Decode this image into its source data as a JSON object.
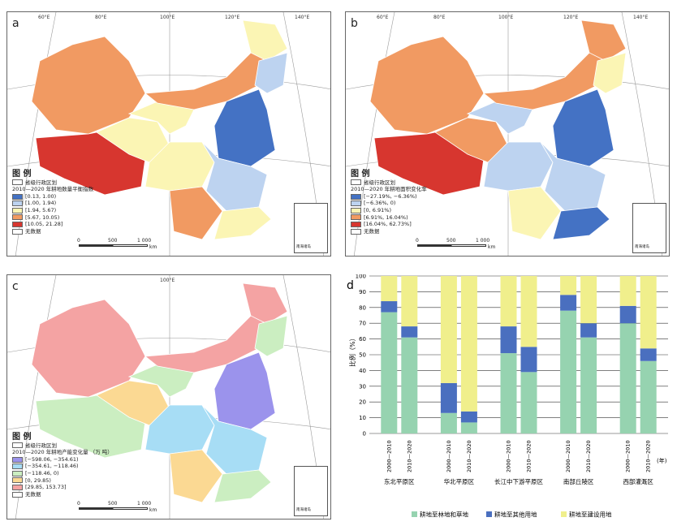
{
  "ticks": {
    "top": [
      "60°E",
      "80°E",
      "100°E",
      "120°E",
      "140°E"
    ],
    "left": [
      "50°N",
      "40°N",
      "30°N",
      "20°N"
    ],
    "right": [
      "50°N",
      "40°N",
      "30°N",
      "20°N"
    ],
    "bottom": [
      "100°E",
      "120°E"
    ]
  },
  "common": {
    "legend_heading": "图 例",
    "boundary_label": "省级行政区划",
    "no_data_label": "无数据",
    "scale_labels": [
      "0",
      "500",
      "1 000"
    ],
    "scale_unit": "km",
    "inset_label": "南海诸岛"
  },
  "panel_a": {
    "letter": "a",
    "legend_title": "2010—2020 年耕地数量平衡指数",
    "classes": [
      {
        "label": "[0.13, 1.00)",
        "color": "#4472c4"
      },
      {
        "label": "[1.00, 1.94)",
        "color": "#bdd3f0"
      },
      {
        "label": "[1.94, 5.67)",
        "color": "#fbf5b4"
      },
      {
        "label": "[5.67, 10.05)",
        "color": "#f19a62"
      },
      {
        "label": "[10.05, 21.28]",
        "color": "#d7362f"
      }
    ]
  },
  "panel_b": {
    "letter": "b",
    "legend_title": "2010—2020 年耕地面积变化率",
    "classes": [
      {
        "label": "[−27.19%, −6.36%)",
        "color": "#4472c4"
      },
      {
        "label": "[−6.36%, 0)",
        "color": "#bdd3f0"
      },
      {
        "label": "[0, 6.91%)",
        "color": "#fbf5b4"
      },
      {
        "label": "[6.91%, 16.04%)",
        "color": "#f19a62"
      },
      {
        "label": "[16.04%, 62.73%]",
        "color": "#d7362f"
      }
    ]
  },
  "panel_c": {
    "letter": "c",
    "legend_title": "2010—2020 年耕地产能变化量 （万 吨）",
    "classes": [
      {
        "label": "[−598.06, −354.61)",
        "color": "#9b93ec"
      },
      {
        "label": "[−354.61, −118.46)",
        "color": "#a7ddf5"
      },
      {
        "label": "[−118.46, 0)",
        "color": "#cbeec1"
      },
      {
        "label": "[0, 29.85)",
        "color": "#fbd993"
      },
      {
        "label": "[29.85, 153.73]",
        "color": "#f4a3a3"
      }
    ]
  },
  "chart_data": {
    "type": "bar",
    "panel_letter": "d",
    "stacked": true,
    "categories": [
      "东北平原区",
      "华北平原区",
      "长江中下游平原区",
      "南部丘陵区",
      "西部灌溉区"
    ],
    "periods": [
      "2000—2010",
      "2010—2020"
    ],
    "x_unit_label": "(年)",
    "ylabel": "比例（%）",
    "ylim": [
      0,
      100
    ],
    "yticks": [
      0,
      10,
      20,
      30,
      40,
      50,
      60,
      70,
      80,
      90,
      100
    ],
    "series": [
      {
        "name": "耕地至林地和草地",
        "color": "#96d3b0",
        "values": [
          [
            77,
            61
          ],
          [
            13,
            7
          ],
          [
            51,
            39
          ],
          [
            78,
            61
          ],
          [
            70,
            46
          ]
        ]
      },
      {
        "name": "耕地至其他用地",
        "color": "#4a6fbf",
        "values": [
          [
            7,
            7
          ],
          [
            19,
            7
          ],
          [
            17,
            16
          ],
          [
            10,
            9
          ],
          [
            11,
            8
          ]
        ]
      },
      {
        "name": "耕地至建设用地",
        "color": "#f0ef8c",
        "values": [
          [
            16,
            32
          ],
          [
            68,
            86
          ],
          [
            32,
            45
          ],
          [
            12,
            30
          ],
          [
            19,
            46
          ]
        ]
      }
    ]
  }
}
